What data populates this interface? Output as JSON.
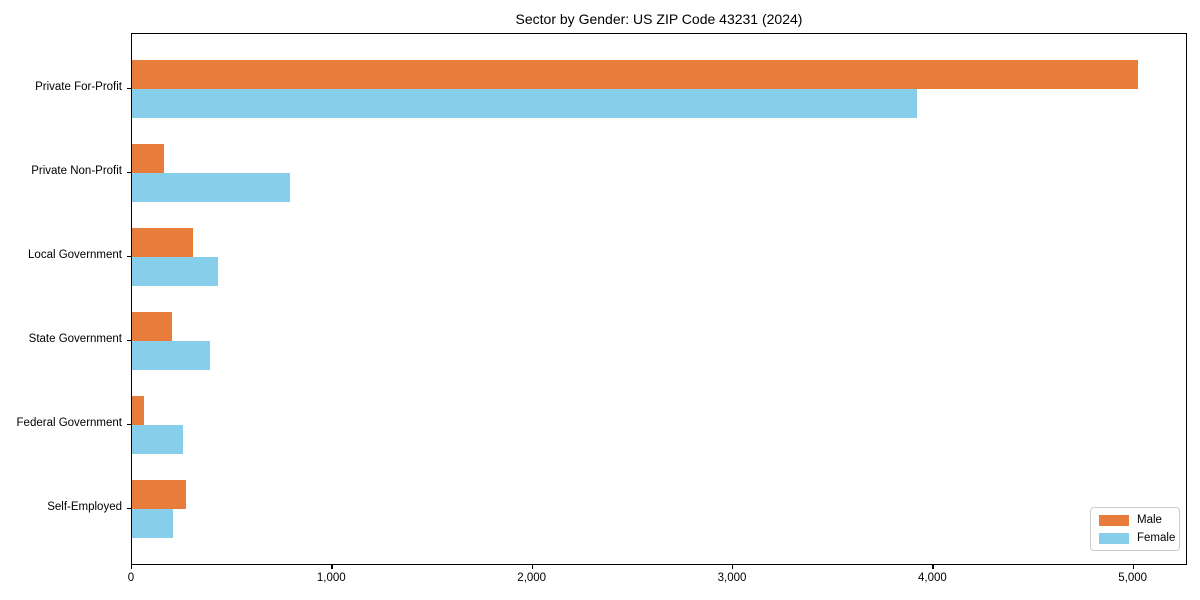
{
  "chart_data": {
    "type": "bar",
    "orientation": "horizontal",
    "title": "Sector by Gender: US ZIP Code 43231 (2024)",
    "categories": [
      "Private For-Profit",
      "Private Non-Profit",
      "Local Government",
      "State Government",
      "Federal Government",
      "Self-Employed"
    ],
    "series": [
      {
        "name": "Male",
        "color": "#E87D3B",
        "values": [
          5020,
          160,
          305,
          200,
          60,
          270
        ]
      },
      {
        "name": "Female",
        "color": "#87CEEB",
        "values": [
          3920,
          790,
          430,
          390,
          255,
          205
        ]
      }
    ],
    "xlabel": "",
    "ylabel": "",
    "xlim": [
      0,
      5271
    ],
    "xticks": [
      0,
      1000,
      2000,
      3000,
      4000,
      5000
    ],
    "xtick_labels": [
      "0",
      "1,000",
      "2,000",
      "3,000",
      "4,000",
      "5,000"
    ],
    "legend_position": "lower right",
    "grid": false,
    "plot_border_color": "#000000",
    "background_color": "#ffffff"
  }
}
